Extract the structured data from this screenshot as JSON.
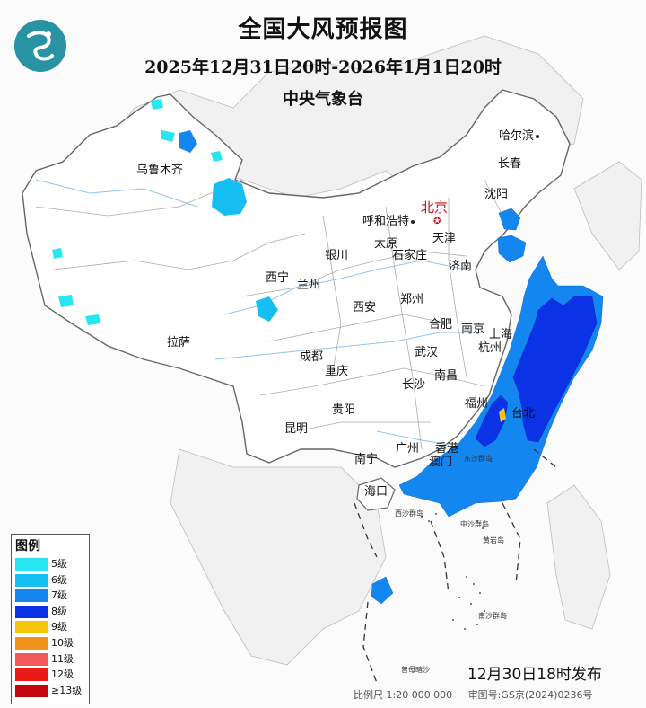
{
  "header": {
    "title": "全国大风预报图",
    "period": "2025年12月31日20时-2026年1月1日20时",
    "agency": "中央气象台"
  },
  "capital": {
    "name": "北京"
  },
  "cities": [
    {
      "id": "harbin",
      "name": "哈尔滨"
    },
    {
      "id": "changchun",
      "name": "长春"
    },
    {
      "id": "shenyang",
      "name": "沈阳"
    },
    {
      "id": "urumqi",
      "name": "乌鲁木齐"
    },
    {
      "id": "hohhot",
      "name": "呼和浩特"
    },
    {
      "id": "tianjin",
      "name": "天津"
    },
    {
      "id": "taiyuan",
      "name": "太原"
    },
    {
      "id": "shijiazhuang",
      "name": "石家庄"
    },
    {
      "id": "yinchuan",
      "name": "银川"
    },
    {
      "id": "jinan",
      "name": "济南"
    },
    {
      "id": "xining",
      "name": "西宁"
    },
    {
      "id": "lanzhou",
      "name": "兰州"
    },
    {
      "id": "zhengzhou",
      "name": "郑州"
    },
    {
      "id": "xian",
      "name": "西安"
    },
    {
      "id": "hefei",
      "name": "合肥"
    },
    {
      "id": "nanjing",
      "name": "南京"
    },
    {
      "id": "shanghai",
      "name": "上海"
    },
    {
      "id": "lhasa",
      "name": "拉萨"
    },
    {
      "id": "chengdu",
      "name": "成都"
    },
    {
      "id": "wuhan",
      "name": "武汉"
    },
    {
      "id": "hangzhou",
      "name": "杭州"
    },
    {
      "id": "chongqing",
      "name": "重庆"
    },
    {
      "id": "nanchang",
      "name": "南昌"
    },
    {
      "id": "changsha",
      "name": "长沙"
    },
    {
      "id": "fuzhou",
      "name": "福州"
    },
    {
      "id": "taipei",
      "name": "台北"
    },
    {
      "id": "guiyang",
      "name": "贵阳"
    },
    {
      "id": "kunming",
      "name": "昆明"
    },
    {
      "id": "guangzhou",
      "name": "广州"
    },
    {
      "id": "hongkong",
      "name": "香港"
    },
    {
      "id": "macau",
      "name": "澳门"
    },
    {
      "id": "nanning",
      "name": "南宁"
    },
    {
      "id": "haikou",
      "name": "海口"
    }
  ],
  "islands": [
    {
      "id": "dongsha",
      "name": "东沙群岛"
    },
    {
      "id": "xisha",
      "name": "西沙群岛"
    },
    {
      "id": "zhongsha",
      "name": "中沙群岛"
    },
    {
      "id": "nansha",
      "name": "南沙群岛"
    },
    {
      "id": "huangyan",
      "name": "黄岩岛"
    },
    {
      "id": "zengmu",
      "name": "曾母暗沙"
    }
  ],
  "legend": {
    "title": "图例",
    "items": [
      {
        "label": "5级",
        "color": "#27e6f2"
      },
      {
        "label": "6级",
        "color": "#16bff2"
      },
      {
        "label": "7级",
        "color": "#1486ef"
      },
      {
        "label": "8级",
        "color": "#0c32e6"
      },
      {
        "label": "9级",
        "color": "#f6c60b"
      },
      {
        "label": "10级",
        "color": "#f39218"
      },
      {
        "label": "11级",
        "color": "#f25a5a"
      },
      {
        "label": "12级",
        "color": "#ea1b16"
      },
      {
        "label": "≥13级",
        "color": "#c2070c"
      }
    ]
  },
  "issued": "12月30日18时发布",
  "footer": {
    "scale": "比例尺 1:20 000 000",
    "review": "审图号:GS京(2024)0236号"
  }
}
